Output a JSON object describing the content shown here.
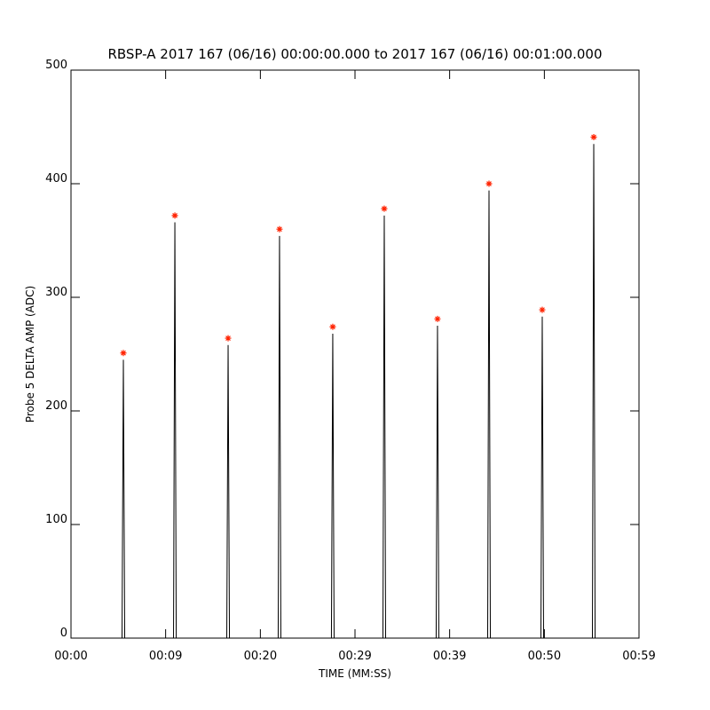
{
  "chart_data": {
    "type": "line",
    "title": "RBSP-A 2017 167 (06/16) 00:00:00.000 to 2017 167 (06/16) 00:01:00.000",
    "x_label": "TIME (MM:SS)",
    "y_label": "Probe 5 DELTA AMP (ADC)",
    "xlim": [
      0,
      59
    ],
    "xticks": [
      {
        "value": 0,
        "label": "00:00"
      },
      {
        "value": 9.83,
        "label": "00:09"
      },
      {
        "value": 19.67,
        "label": "00:20"
      },
      {
        "value": 29.5,
        "label": "00:29"
      },
      {
        "value": 39.33,
        "label": "00:39"
      },
      {
        "value": 49.17,
        "label": "00:50"
      },
      {
        "value": 59,
        "label": "00:59"
      }
    ],
    "ylim": [
      0,
      500
    ],
    "yticks": [
      0,
      100,
      200,
      300,
      400,
      500
    ],
    "series": [
      {
        "name": "signal",
        "color": "#000000",
        "x": [
          0,
          5.3,
          5.44,
          5.58,
          10.65,
          10.79,
          10.93,
          16.18,
          16.32,
          16.46,
          21.52,
          21.66,
          21.8,
          27.05,
          27.19,
          27.33,
          32.4,
          32.54,
          32.68,
          37.93,
          38.07,
          38.21,
          43.28,
          43.42,
          43.56,
          48.81,
          48.95,
          49.09,
          54.16,
          54.3,
          54.44,
          59
        ],
        "values": [
          0,
          0,
          245,
          0,
          0,
          366,
          0,
          0,
          258,
          0,
          0,
          354,
          0,
          0,
          268,
          0,
          0,
          372,
          0,
          0,
          275,
          0,
          0,
          394,
          0,
          0,
          283,
          0,
          0,
          435,
          0,
          0
        ]
      },
      {
        "name": "peaks",
        "color": "#ff2200",
        "x": [
          5.44,
          10.79,
          16.32,
          21.66,
          27.19,
          32.54,
          38.07,
          43.42,
          48.95,
          54.3
        ],
        "values": [
          251,
          372,
          264,
          360,
          274,
          378,
          281,
          400,
          289,
          441
        ]
      }
    ]
  }
}
